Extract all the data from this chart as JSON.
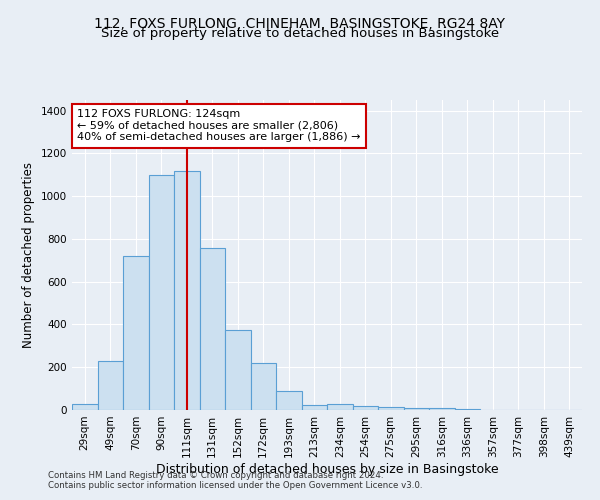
{
  "title1": "112, FOXS FURLONG, CHINEHAM, BASINGSTOKE, RG24 8AY",
  "title2": "Size of property relative to detached houses in Basingstoke",
  "xlabel": "Distribution of detached houses by size in Basingstoke",
  "ylabel": "Number of detached properties",
  "footnote1": "Contains HM Land Registry data © Crown copyright and database right 2024.",
  "footnote2": "Contains public sector information licensed under the Open Government Licence v3.0.",
  "bar_labels": [
    "29sqm",
    "49sqm",
    "70sqm",
    "90sqm",
    "111sqm",
    "131sqm",
    "152sqm",
    "172sqm",
    "193sqm",
    "213sqm",
    "234sqm",
    "254sqm",
    "275sqm",
    "295sqm",
    "316sqm",
    "336sqm",
    "357sqm",
    "377sqm",
    "398sqm",
    "439sqm"
  ],
  "bar_values": [
    30,
    230,
    720,
    1100,
    1120,
    760,
    375,
    220,
    90,
    25,
    30,
    20,
    15,
    10,
    10,
    5,
    0,
    0,
    0,
    0
  ],
  "bar_color": "#cce0f0",
  "bar_edge_color": "#5a9fd4",
  "vline_color": "#cc0000",
  "vline_x": 4.5,
  "annotation_text": "112 FOXS FURLONG: 124sqm\n← 59% of detached houses are smaller (2,806)\n40% of semi-detached houses are larger (1,886) →",
  "annotation_box_color": "#ffffff",
  "annotation_box_edge": "#cc0000",
  "ylim": [
    0,
    1450
  ],
  "yticks": [
    0,
    200,
    400,
    600,
    800,
    1000,
    1200,
    1400
  ],
  "background_color": "#e8eef5",
  "grid_color": "#ffffff",
  "title1_fontsize": 10,
  "title2_fontsize": 9.5,
  "annotation_fontsize": 8,
  "xlabel_fontsize": 9,
  "ylabel_fontsize": 8.5,
  "tick_fontsize": 7.5
}
